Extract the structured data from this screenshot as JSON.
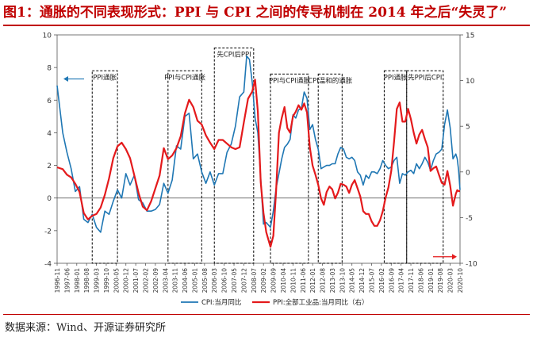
{
  "header": {
    "title": "图1：通胀的不同表现形式：PPI 与 CPI 之间的传导机制在 2014 年之后“失灵了”"
  },
  "footer": {
    "source": "数据来源：Wind、开源证券研究所"
  },
  "chart_data": {
    "type": "line",
    "title": "",
    "x_range": [
      "1996-11",
      "2020-10"
    ],
    "x_ticks": [
      "1996-11",
      "1997-06",
      "1998-01",
      "1998-08",
      "1999-03",
      "1999-10",
      "2000-05",
      "2000-12",
      "2001-07",
      "2002-02",
      "2002-09",
      "2003-04",
      "2003-11",
      "2004-06",
      "2005-01",
      "2005-08",
      "2006-03",
      "2006-10",
      "2007-05",
      "2007-12",
      "2008-07",
      "2009-02",
      "2009-09",
      "2010-04",
      "2010-11",
      "2011-06",
      "2012-01",
      "2012-08",
      "2013-03",
      "2013-10",
      "2014-05",
      "2014-12",
      "2015-07",
      "2016-02",
      "2016-09",
      "2017-04",
      "2017-11",
      "2018-06",
      "2019-01",
      "2019-08",
      "2020-03",
      "2020-10"
    ],
    "y_left": {
      "range": [
        -4,
        10
      ],
      "ticks": [
        -4,
        -2,
        0,
        2,
        4,
        6,
        8,
        10
      ]
    },
    "y_right": {
      "range": [
        -10,
        15
      ],
      "ticks": [
        -10,
        -5,
        0,
        5,
        10,
        15
      ]
    },
    "grid": false,
    "legend_position": "bottom",
    "series": [
      {
        "name": "CPI:当月同比",
        "axis": "left",
        "color": "#1f77b4",
        "points": [
          [
            "1996-11",
            6.9
          ],
          [
            "1997-03",
            4.0
          ],
          [
            "1997-06",
            2.8
          ],
          [
            "1997-09",
            1.8
          ],
          [
            "1997-12",
            0.4
          ],
          [
            "1998-03",
            0.7
          ],
          [
            "1998-06",
            -1.3
          ],
          [
            "1998-09",
            -1.5
          ],
          [
            "1998-12",
            -1.0
          ],
          [
            "1999-03",
            -1.8
          ],
          [
            "1999-06",
            -2.1
          ],
          [
            "1999-09",
            -0.8
          ],
          [
            "1999-12",
            -1.0
          ],
          [
            "2000-03",
            -0.2
          ],
          [
            "2000-06",
            0.5
          ],
          [
            "2000-09",
            0.0
          ],
          [
            "2000-12",
            1.5
          ],
          [
            "2001-03",
            0.8
          ],
          [
            "2001-06",
            1.4
          ],
          [
            "2001-09",
            -0.1
          ],
          [
            "2001-12",
            -0.3
          ],
          [
            "2002-03",
            -0.8
          ],
          [
            "2002-06",
            -0.8
          ],
          [
            "2002-09",
            -0.7
          ],
          [
            "2002-12",
            -0.4
          ],
          [
            "2003-03",
            0.9
          ],
          [
            "2003-06",
            0.3
          ],
          [
            "2003-09",
            1.1
          ],
          [
            "2003-12",
            3.2
          ],
          [
            "2004-03",
            3.0
          ],
          [
            "2004-06",
            5.0
          ],
          [
            "2004-09",
            5.2
          ],
          [
            "2004-12",
            2.4
          ],
          [
            "2005-03",
            2.7
          ],
          [
            "2005-06",
            1.6
          ],
          [
            "2005-09",
            0.9
          ],
          [
            "2005-12",
            1.6
          ],
          [
            "2006-03",
            0.8
          ],
          [
            "2006-06",
            1.5
          ],
          [
            "2006-09",
            1.5
          ],
          [
            "2006-12",
            2.8
          ],
          [
            "2007-03",
            3.3
          ],
          [
            "2007-06",
            4.4
          ],
          [
            "2007-09",
            6.2
          ],
          [
            "2007-12",
            6.5
          ],
          [
            "2008-02",
            8.7
          ],
          [
            "2008-04",
            8.5
          ],
          [
            "2008-06",
            7.1
          ],
          [
            "2008-08",
            4.9
          ],
          [
            "2008-10",
            4.0
          ],
          [
            "2008-12",
            1.2
          ],
          [
            "2009-02",
            -1.6
          ],
          [
            "2009-04",
            -1.5
          ],
          [
            "2009-07",
            -1.8
          ],
          [
            "2009-09",
            -0.8
          ],
          [
            "2009-11",
            0.6
          ],
          [
            "2010-01",
            1.5
          ],
          [
            "2010-03",
            2.4
          ],
          [
            "2010-05",
            3.1
          ],
          [
            "2010-07",
            3.3
          ],
          [
            "2010-09",
            3.6
          ],
          [
            "2010-11",
            5.1
          ],
          [
            "2011-01",
            4.9
          ],
          [
            "2011-03",
            5.4
          ],
          [
            "2011-05",
            5.5
          ],
          [
            "2011-07",
            6.5
          ],
          [
            "2011-09",
            6.1
          ],
          [
            "2011-11",
            4.2
          ],
          [
            "2012-01",
            4.5
          ],
          [
            "2012-03",
            3.6
          ],
          [
            "2012-05",
            3.0
          ],
          [
            "2012-07",
            1.8
          ],
          [
            "2012-09",
            1.9
          ],
          [
            "2012-11",
            2.0
          ],
          [
            "2013-01",
            2.0
          ],
          [
            "2013-03",
            2.1
          ],
          [
            "2013-05",
            2.1
          ],
          [
            "2013-07",
            2.7
          ],
          [
            "2013-09",
            3.1
          ],
          [
            "2013-11",
            3.0
          ],
          [
            "2014-01",
            2.5
          ],
          [
            "2014-03",
            2.4
          ],
          [
            "2014-05",
            2.5
          ],
          [
            "2014-07",
            2.3
          ],
          [
            "2014-09",
            1.6
          ],
          [
            "2014-11",
            1.4
          ],
          [
            "2015-01",
            0.8
          ],
          [
            "2015-03",
            1.4
          ],
          [
            "2015-05",
            1.2
          ],
          [
            "2015-07",
            1.6
          ],
          [
            "2015-09",
            1.6
          ],
          [
            "2015-11",
            1.5
          ],
          [
            "2016-01",
            1.8
          ],
          [
            "2016-03",
            2.3
          ],
          [
            "2016-05",
            2.0
          ],
          [
            "2016-07",
            1.8
          ],
          [
            "2016-09",
            1.9
          ],
          [
            "2016-11",
            2.3
          ],
          [
            "2017-01",
            2.5
          ],
          [
            "2017-03",
            0.9
          ],
          [
            "2017-05",
            1.5
          ],
          [
            "2017-07",
            1.4
          ],
          [
            "2017-09",
            1.6
          ],
          [
            "2017-11",
            1.7
          ],
          [
            "2018-01",
            1.5
          ],
          [
            "2018-03",
            2.1
          ],
          [
            "2018-05",
            1.8
          ],
          [
            "2018-07",
            2.1
          ],
          [
            "2018-09",
            2.5
          ],
          [
            "2018-11",
            2.2
          ],
          [
            "2019-01",
            1.7
          ],
          [
            "2019-03",
            2.3
          ],
          [
            "2019-05",
            2.7
          ],
          [
            "2019-07",
            2.8
          ],
          [
            "2019-09",
            3.0
          ],
          [
            "2019-11",
            4.5
          ],
          [
            "2020-01",
            5.4
          ],
          [
            "2020-03",
            4.3
          ],
          [
            "2020-05",
            2.4
          ],
          [
            "2020-07",
            2.7
          ],
          [
            "2020-08",
            2.4
          ],
          [
            "2020-09",
            1.7
          ],
          [
            "2020-10",
            0.5
          ]
        ]
      },
      {
        "name": "PPI:全部工业品:当月同比（右）",
        "axis": "right",
        "color": "#e41a1c",
        "points": [
          [
            "1996-11",
            0.5
          ],
          [
            "1997-03",
            0.3
          ],
          [
            "1997-06",
            -0.3
          ],
          [
            "1997-09",
            -0.6
          ],
          [
            "1997-12",
            -1.3
          ],
          [
            "1998-03",
            -2.2
          ],
          [
            "1998-06",
            -4.5
          ],
          [
            "1998-09",
            -5.2
          ],
          [
            "1998-12",
            -4.8
          ],
          [
            "1999-03",
            -4.6
          ],
          [
            "1999-06",
            -3.9
          ],
          [
            "1999-09",
            -2.5
          ],
          [
            "1999-12",
            -0.7
          ],
          [
            "2000-03",
            1.5
          ],
          [
            "2000-06",
            2.8
          ],
          [
            "2000-09",
            3.2
          ],
          [
            "2000-12",
            2.5
          ],
          [
            "2001-03",
            1.5
          ],
          [
            "2001-06",
            -0.4
          ],
          [
            "2001-09",
            -2.3
          ],
          [
            "2001-12",
            -3.8
          ],
          [
            "2002-03",
            -4.2
          ],
          [
            "2002-06",
            -3.2
          ],
          [
            "2002-09",
            -1.8
          ],
          [
            "2002-12",
            -0.4
          ],
          [
            "2003-03",
            2.6
          ],
          [
            "2003-06",
            1.4
          ],
          [
            "2003-09",
            1.8
          ],
          [
            "2003-12",
            2.6
          ],
          [
            "2004-03",
            3.9
          ],
          [
            "2004-06",
            6.4
          ],
          [
            "2004-09",
            7.9
          ],
          [
            "2004-12",
            7.1
          ],
          [
            "2005-03",
            5.6
          ],
          [
            "2005-06",
            5.2
          ],
          [
            "2005-09",
            4.0
          ],
          [
            "2005-12",
            3.2
          ],
          [
            "2006-03",
            2.5
          ],
          [
            "2006-06",
            3.5
          ],
          [
            "2006-09",
            3.5
          ],
          [
            "2006-12",
            3.1
          ],
          [
            "2007-03",
            2.7
          ],
          [
            "2007-06",
            2.5
          ],
          [
            "2007-09",
            2.7
          ],
          [
            "2007-12",
            5.4
          ],
          [
            "2008-03",
            8.0
          ],
          [
            "2008-06",
            8.8
          ],
          [
            "2008-08",
            10.1
          ],
          [
            "2008-10",
            6.6
          ],
          [
            "2008-12",
            -1.1
          ],
          [
            "2009-02",
            -4.5
          ],
          [
            "2009-04",
            -6.6
          ],
          [
            "2009-07",
            -8.2
          ],
          [
            "2009-09",
            -7.0
          ],
          [
            "2009-11",
            -2.1
          ],
          [
            "2010-01",
            4.3
          ],
          [
            "2010-03",
            5.9
          ],
          [
            "2010-05",
            7.1
          ],
          [
            "2010-07",
            4.8
          ],
          [
            "2010-09",
            4.3
          ],
          [
            "2010-11",
            6.1
          ],
          [
            "2011-01",
            6.6
          ],
          [
            "2011-03",
            7.3
          ],
          [
            "2011-05",
            6.8
          ],
          [
            "2011-07",
            7.5
          ],
          [
            "2011-09",
            6.5
          ],
          [
            "2011-11",
            2.7
          ],
          [
            "2012-01",
            0.7
          ],
          [
            "2012-03",
            -0.3
          ],
          [
            "2012-05",
            -1.4
          ],
          [
            "2012-07",
            -2.9
          ],
          [
            "2012-09",
            -3.6
          ],
          [
            "2012-11",
            -2.2
          ],
          [
            "2013-01",
            -1.6
          ],
          [
            "2013-03",
            -1.9
          ],
          [
            "2013-05",
            -2.9
          ],
          [
            "2013-07",
            -2.3
          ],
          [
            "2013-09",
            -1.3
          ],
          [
            "2013-11",
            -1.4
          ],
          [
            "2014-01",
            -1.6
          ],
          [
            "2014-03",
            -2.3
          ],
          [
            "2014-05",
            -1.4
          ],
          [
            "2014-07",
            -0.9
          ],
          [
            "2014-09",
            -1.8
          ],
          [
            "2014-11",
            -2.7
          ],
          [
            "2015-01",
            -4.3
          ],
          [
            "2015-03",
            -4.6
          ],
          [
            "2015-05",
            -4.6
          ],
          [
            "2015-07",
            -5.4
          ],
          [
            "2015-09",
            -5.9
          ],
          [
            "2015-11",
            -5.9
          ],
          [
            "2016-01",
            -5.3
          ],
          [
            "2016-03",
            -4.3
          ],
          [
            "2016-05",
            -2.8
          ],
          [
            "2016-07",
            -1.7
          ],
          [
            "2016-09",
            0.1
          ],
          [
            "2016-11",
            3.3
          ],
          [
            "2017-01",
            6.9
          ],
          [
            "2017-03",
            7.6
          ],
          [
            "2017-05",
            5.5
          ],
          [
            "2017-07",
            5.5
          ],
          [
            "2017-09",
            6.9
          ],
          [
            "2017-11",
            5.8
          ],
          [
            "2018-01",
            4.3
          ],
          [
            "2018-03",
            3.1
          ],
          [
            "2018-05",
            4.1
          ],
          [
            "2018-07",
            4.6
          ],
          [
            "2018-09",
            3.6
          ],
          [
            "2018-11",
            2.7
          ],
          [
            "2019-01",
            0.1
          ],
          [
            "2019-03",
            0.4
          ],
          [
            "2019-05",
            0.6
          ],
          [
            "2019-07",
            -0.3
          ],
          [
            "2019-09",
            -1.2
          ],
          [
            "2019-11",
            -1.4
          ],
          [
            "2020-01",
            0.1
          ],
          [
            "2020-03",
            -1.5
          ],
          [
            "2020-05",
            -3.7
          ],
          [
            "2020-07",
            -2.4
          ],
          [
            "2020-08",
            -2.0
          ],
          [
            "2020-09",
            -2.1
          ],
          [
            "2020-10",
            -2.1
          ]
        ]
      }
    ],
    "annotations": [
      {
        "label": "PPI通胀",
        "from": "1998-12",
        "to": "2000-06",
        "label_y": 7.8
      },
      {
        "label": "PPI与CPI通胀",
        "from": "2003-06",
        "to": "2005-06",
        "label_y": 7.8
      },
      {
        "label": "先CPI后PPI",
        "from": "2006-03",
        "to": "2008-07",
        "label_y": 9.2
      },
      {
        "label": "PPI与CPI通胀",
        "from": "2009-07",
        "to": "2011-10",
        "label_y": 7.6
      },
      {
        "label": "CPI温和的通胀",
        "from": "2012-05",
        "to": "2013-10",
        "label_y": 7.6
      },
      {
        "label": "PPI通胀",
        "from": "2016-04",
        "to": "2017-08",
        "label_y": 7.8
      },
      {
        "label": "先PPI后CPI",
        "from": "2017-08",
        "to": "2019-10",
        "label_y": 7.8
      }
    ],
    "arrows": [
      {
        "series": "CPI:当月同比",
        "direction": "left",
        "at": "1996-11",
        "y": 7.3
      },
      {
        "series": "PPI:全部工业品:当月同比（右）",
        "direction": "right",
        "at": "2020-10",
        "y": -3.6
      }
    ]
  }
}
